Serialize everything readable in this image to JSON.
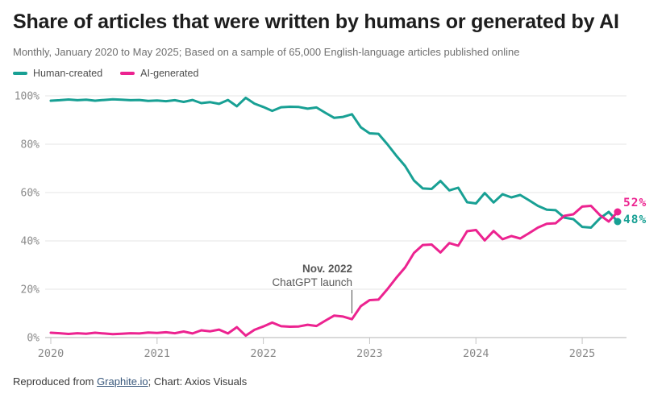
{
  "header": {
    "title": "Share of articles that were written by humans or generated by AI",
    "subtitle": "Monthly, January 2020 to May 2025; Based on a sample of 65,000 English-language articles published online"
  },
  "legend": [
    {
      "label": "Human-created",
      "color": "#18a094"
    },
    {
      "label": "AI-generated",
      "color": "#ec2390"
    }
  ],
  "chart_data": {
    "type": "line",
    "title": "Share of articles that were written by humans or generated by AI",
    "x_start": "2020-01",
    "x_end": "2025-05",
    "x_tick_labels": [
      "2020",
      "2021",
      "2022",
      "2023",
      "2024",
      "2025"
    ],
    "y_tick_labels": [
      "0%",
      "20%",
      "40%",
      "60%",
      "80%",
      "100%"
    ],
    "y_tick_values": [
      0,
      20,
      40,
      60,
      80,
      100
    ],
    "ylim": [
      0,
      100
    ],
    "grid": true,
    "legend_position": "top-left",
    "annotation": {
      "line1": "Nov. 2022",
      "line2": "ChatGPT launch",
      "x_month_index": 34
    },
    "series": [
      {
        "name": "Human-created",
        "color": "#18a094",
        "end_label": "48%",
        "values": [
          98.0,
          98.2,
          98.5,
          98.2,
          98.4,
          98.0,
          98.3,
          98.6,
          98.4,
          98.2,
          98.3,
          97.9,
          98.1,
          97.8,
          98.2,
          97.5,
          98.3,
          97.0,
          97.4,
          96.7,
          98.3,
          95.7,
          99.2,
          96.8,
          95.4,
          93.8,
          95.3,
          95.5,
          95.4,
          94.7,
          95.2,
          93.0,
          90.9,
          91.3,
          92.4,
          87.0,
          84.5,
          84.3,
          80.0,
          75.3,
          71.0,
          65.0,
          61.7,
          61.5,
          64.8,
          60.9,
          62.0,
          56.0,
          55.5,
          59.8,
          55.9,
          59.3,
          58.0,
          59.0,
          56.8,
          54.5,
          52.9,
          52.7,
          49.6,
          49.0,
          45.8,
          45.5,
          49.3,
          52.0,
          48.0
        ]
      },
      {
        "name": "AI-generated",
        "color": "#ec2390",
        "end_label": "52%",
        "values": [
          2.0,
          1.8,
          1.5,
          1.8,
          1.6,
          2.0,
          1.7,
          1.4,
          1.6,
          1.8,
          1.7,
          2.1,
          1.9,
          2.2,
          1.8,
          2.5,
          1.7,
          3.0,
          2.6,
          3.3,
          1.7,
          4.3,
          0.8,
          3.2,
          4.6,
          6.2,
          4.7,
          4.5,
          4.6,
          5.3,
          4.8,
          7.0,
          9.1,
          8.7,
          7.6,
          13.0,
          15.5,
          15.7,
          20.0,
          24.7,
          29.0,
          35.0,
          38.3,
          38.5,
          35.2,
          39.1,
          38.0,
          44.0,
          44.5,
          40.2,
          44.1,
          40.7,
          42.0,
          41.0,
          43.2,
          45.5,
          47.1,
          47.3,
          50.4,
          51.0,
          54.2,
          54.5,
          50.7,
          48.0,
          52.0
        ]
      }
    ]
  },
  "footer": {
    "prefix": "Reproduced from ",
    "link": "Graphite.io",
    "suffix": "; Chart: Axios Visuals"
  }
}
